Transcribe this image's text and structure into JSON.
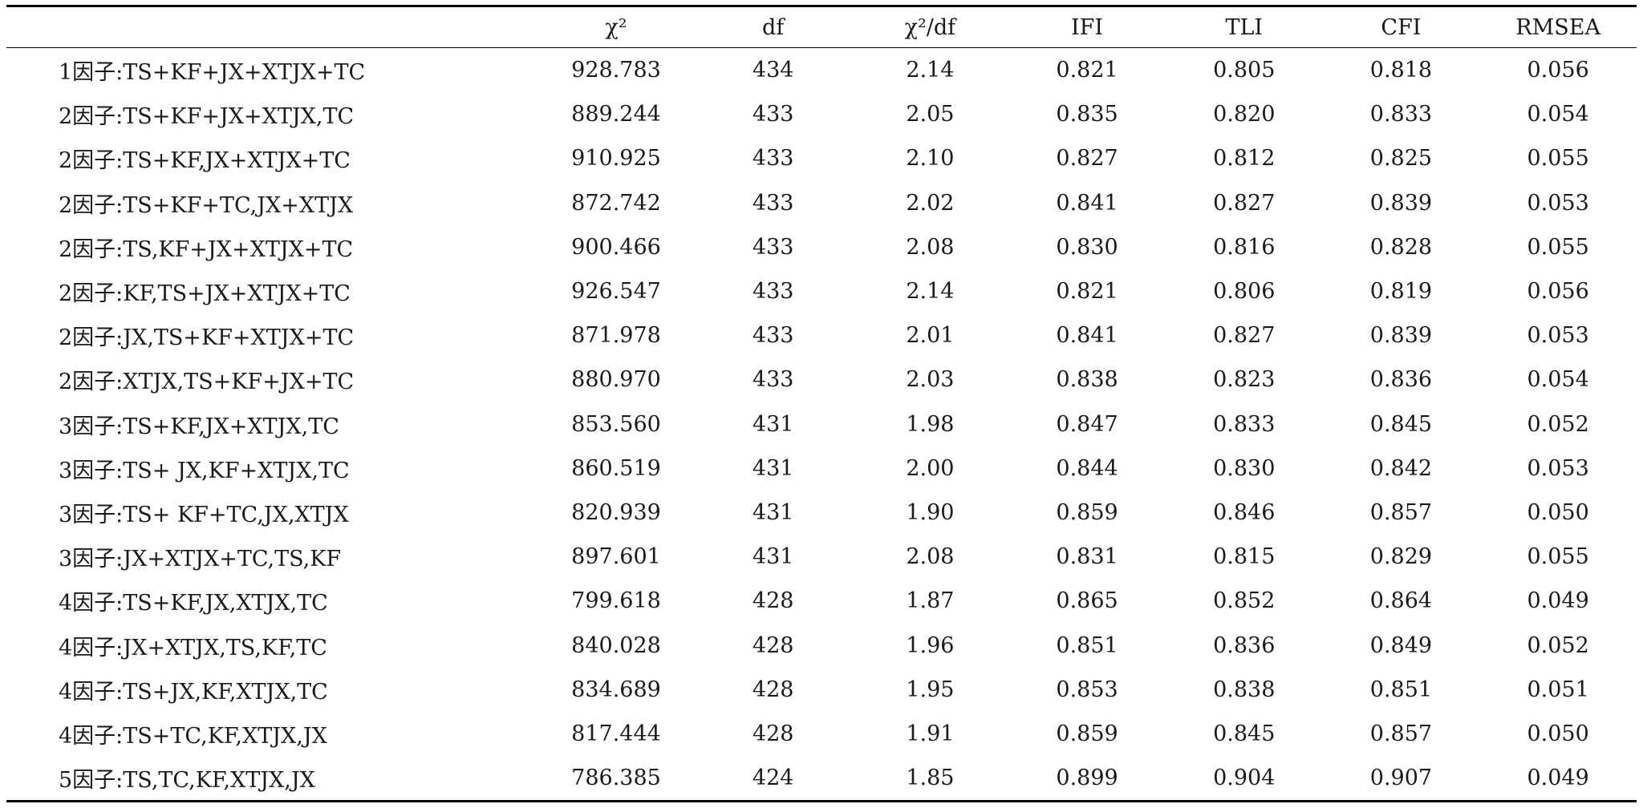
{
  "table": {
    "headers": [
      "",
      "χ²",
      "df",
      "χ²/df",
      "IFI",
      "TLI",
      "CFI",
      "RMSEA"
    ],
    "rows": [
      [
        "1因子:TS+KF+JX+XTJX+TC",
        "928.783",
        "434",
        "2.14",
        "0.821",
        "0.805",
        "0.818",
        "0.056"
      ],
      [
        "2因子:TS+KF+JX+XTJX,TC",
        "889.244",
        "433",
        "2.05",
        "0.835",
        "0.820",
        "0.833",
        "0.054"
      ],
      [
        "2因子:TS+KF,JX+XTJX+TC",
        "910.925",
        "433",
        "2.10",
        "0.827",
        "0.812",
        "0.825",
        "0.055"
      ],
      [
        "2因子:TS+KF+TC,JX+XTJX",
        "872.742",
        "433",
        "2.02",
        "0.841",
        "0.827",
        "0.839",
        "0.053"
      ],
      [
        "2因子:TS,KF+JX+XTJX+TC",
        "900.466",
        "433",
        "2.08",
        "0.830",
        "0.816",
        "0.828",
        "0.055"
      ],
      [
        "2因子:KF,TS+JX+XTJX+TC",
        "926.547",
        "433",
        "2.14",
        "0.821",
        "0.806",
        "0.819",
        "0.056"
      ],
      [
        "2因子:JX,TS+KF+XTJX+TC",
        "871.978",
        "433",
        "2.01",
        "0.841",
        "0.827",
        "0.839",
        "0.053"
      ],
      [
        "2因子:XTJX,TS+KF+JX+TC",
        "880.970",
        "433",
        "2.03",
        "0.838",
        "0.823",
        "0.836",
        "0.054"
      ],
      [
        "3因子:TS+KF,JX+XTJX,TC",
        "853.560",
        "431",
        "1.98",
        "0.847",
        "0.833",
        "0.845",
        "0.052"
      ],
      [
        "3因子:TS+ JX,KF+XTJX,TC",
        "860.519",
        "431",
        "2.00",
        "0.844",
        "0.830",
        "0.842",
        "0.053"
      ],
      [
        "3因子:TS+ KF+TC,JX,XTJX",
        "820.939",
        "431",
        "1.90",
        "0.859",
        "0.846",
        "0.857",
        "0.050"
      ],
      [
        "3因子:JX+XTJX+TC,TS,KF",
        "897.601",
        "431",
        "2.08",
        "0.831",
        "0.815",
        "0.829",
        "0.055"
      ],
      [
        "4因子:TS+KF,JX,XTJX,TC",
        "799.618",
        "428",
        "1.87",
        "0.865",
        "0.852",
        "0.864",
        "0.049"
      ],
      [
        "4因子:JX+XTJX,TS,KF,TC",
        "840.028",
        "428",
        "1.96",
        "0.851",
        "0.836",
        "0.849",
        "0.052"
      ],
      [
        "4因子:TS+JX,KF,XTJX,TC",
        "834.689",
        "428",
        "1.95",
        "0.853",
        "0.838",
        "0.851",
        "0.051"
      ],
      [
        "4因子:TS+TC,KF,XTJX,JX",
        "817.444",
        "428",
        "1.91",
        "0.859",
        "0.845",
        "0.857",
        "0.050"
      ],
      [
        "5因子:TS,TC,KF,XTJX,JX",
        "786.385",
        "424",
        "1.85",
        "0.899",
        "0.904",
        "0.907",
        "0.049"
      ]
    ]
  }
}
